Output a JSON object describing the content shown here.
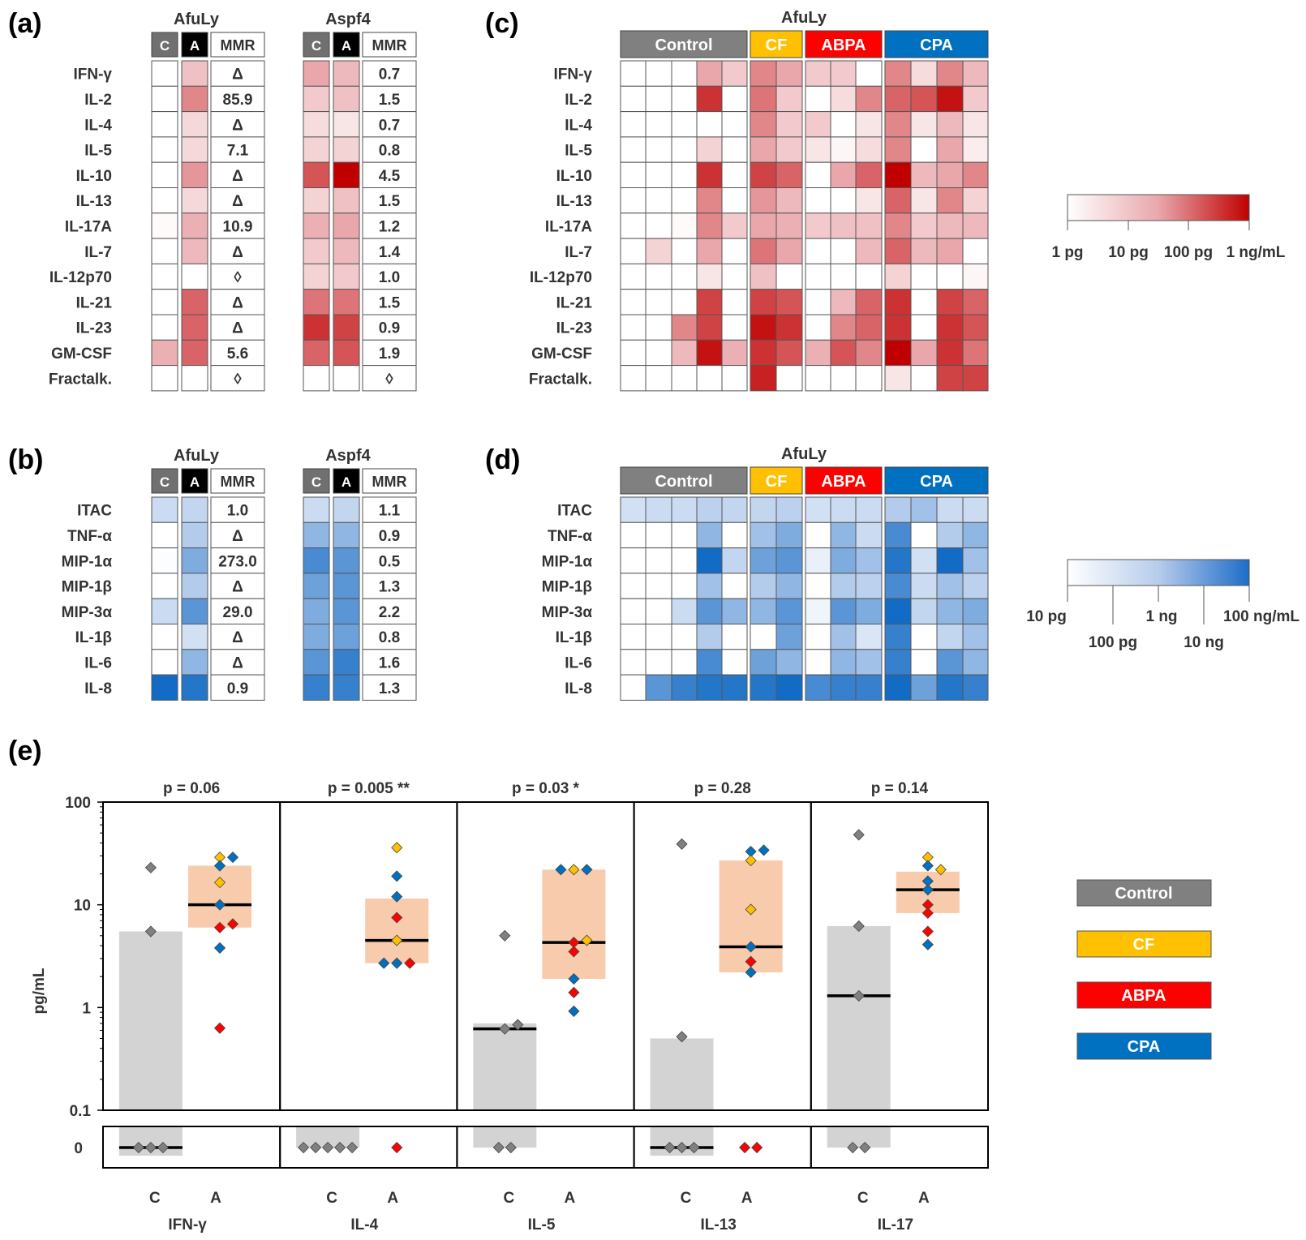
{
  "colors": {
    "control": "#808080",
    "cf": "#FFC000",
    "abpa": "#FF0000",
    "cpa": "#0070C0",
    "red_max": "#C00000",
    "blue_max": "#0060C0",
    "gray_box": "#D3D3D3",
    "orange_box": "#F8CBAD"
  },
  "panel_labels": {
    "a": "(a)",
    "b": "(b)",
    "c": "(c)",
    "d": "(d)",
    "e": "(e)"
  },
  "table_headers": {
    "c": "C",
    "a": "A",
    "mmr": "MMR",
    "afuly": "AfuLy",
    "aspf4": "Aspf4"
  },
  "group_headers": {
    "title": "AfuLy",
    "control": "Control",
    "cf": "CF",
    "abpa": "ABPA",
    "cpa": "CPA"
  },
  "panel_a": {
    "rows": [
      "IFN-γ",
      "IL-2",
      "IL-4",
      "IL-5",
      "IL-10",
      "IL-13",
      "IL-17A",
      "IL-7",
      "IL-12p70",
      "IL-21",
      "IL-23",
      "GM-CSF",
      "Fractalk."
    ],
    "afuly": {
      "c": [
        0,
        0,
        0,
        0,
        0,
        0,
        0.03,
        0,
        0,
        0,
        0,
        0.45,
        0
      ],
      "a": [
        0.35,
        0.6,
        0.22,
        0.22,
        0.55,
        0.22,
        0.45,
        0.4,
        0,
        0.7,
        0.7,
        0.7,
        0
      ],
      "mmr": [
        "Δ",
        "85.9",
        "Δ",
        "7.1",
        "Δ",
        "Δ",
        "10.9",
        "Δ",
        "◊",
        "Δ",
        "Δ",
        "5.6",
        "◊"
      ]
    },
    "aspf4": {
      "c": [
        0.5,
        0.3,
        0.2,
        0.25,
        0.75,
        0.25,
        0.45,
        0.3,
        0.25,
        0.65,
        0.85,
        0.7,
        0
      ],
      "a": [
        0.4,
        0.35,
        0.15,
        0.25,
        1.0,
        0.35,
        0.5,
        0.4,
        0.3,
        0.65,
        0.8,
        0.75,
        0
      ],
      "mmr": [
        "0.7",
        "1.5",
        "0.7",
        "0.8",
        "4.5",
        "1.5",
        "1.2",
        "1.4",
        "1.0",
        "1.5",
        "0.9",
        "1.9",
        "◊"
      ]
    }
  },
  "panel_b": {
    "rows": [
      "ITAC",
      "TNF-α",
      "MIP-1α",
      "MIP-1β",
      "MIP-3α",
      "IL-1β",
      "IL-6",
      "IL-8"
    ],
    "afuly": {
      "c": [
        0.35,
        0,
        0.02,
        0,
        0.35,
        0,
        0,
        0.95
      ],
      "a": [
        0.4,
        0.5,
        0.65,
        0.5,
        0.75,
        0.3,
        0.6,
        0.9
      ],
      "mmr": [
        "1.0",
        "Δ",
        "273.0",
        "Δ",
        "29.0",
        "Δ",
        "Δ",
        "0.9"
      ]
    },
    "aspf4": {
      "c": [
        0.35,
        0.6,
        0.8,
        0.7,
        0.65,
        0.65,
        0.75,
        0.85
      ],
      "a": [
        0.4,
        0.6,
        0.75,
        0.75,
        0.75,
        0.7,
        0.85,
        0.85
      ],
      "mmr": [
        "1.1",
        "0.9",
        "0.5",
        "1.3",
        "2.2",
        "0.8",
        "1.6",
        "1.3"
      ]
    }
  },
  "panel_c": {
    "rows": [
      "IFN-γ",
      "IL-2",
      "IL-4",
      "IL-5",
      "IL-10",
      "IL-13",
      "IL-17A",
      "IL-7",
      "IL-12p70",
      "IL-21",
      "IL-23",
      "GM-CSF",
      "Fractalk."
    ],
    "values": [
      [
        0,
        0,
        0,
        0.5,
        0.3,
        0.6,
        0.5,
        0.3,
        0.3,
        0,
        0.6,
        0.2,
        0.6,
        0.4
      ],
      [
        0,
        0,
        0,
        0.85,
        0,
        0.65,
        0.3,
        0,
        0.2,
        0.6,
        0.7,
        0.75,
        0.95,
        0.3
      ],
      [
        0,
        0,
        0,
        0,
        0,
        0.6,
        0.3,
        0.3,
        0,
        0.15,
        0.6,
        0.15,
        0.4,
        0.15
      ],
      [
        0,
        0,
        0,
        0.25,
        0,
        0.5,
        0.3,
        0.15,
        0.05,
        0.2,
        0.6,
        0,
        0.5,
        0.1
      ],
      [
        0,
        0,
        0,
        0.85,
        0,
        0.8,
        0.7,
        0,
        0.5,
        0.7,
        1.0,
        0.4,
        0.5,
        0.6
      ],
      [
        0,
        0,
        0,
        0.6,
        0,
        0.55,
        0.4,
        0,
        0,
        0.15,
        0.7,
        0.15,
        0.6,
        0.25
      ],
      [
        0,
        0,
        0.03,
        0.6,
        0.3,
        0.5,
        0.45,
        0.3,
        0.35,
        0.35,
        0.6,
        0.3,
        0.4,
        0.4
      ],
      [
        0,
        0.25,
        0,
        0.5,
        0,
        0.65,
        0.5,
        0,
        0,
        0.4,
        0.7,
        0.4,
        0.5,
        0
      ],
      [
        0,
        0,
        0,
        0.15,
        0,
        0.35,
        0,
        0,
        0,
        0,
        0.25,
        0,
        0,
        0.05
      ],
      [
        0,
        0,
        0,
        0.8,
        0,
        0.8,
        0.75,
        0,
        0.4,
        0.7,
        0.85,
        0,
        0.8,
        0.7
      ],
      [
        0,
        0,
        0.6,
        0.8,
        0,
        0.95,
        0.85,
        0,
        0.6,
        0.7,
        0.85,
        0,
        0.85,
        0.75
      ],
      [
        0,
        0,
        0.4,
        0.95,
        0.45,
        0.85,
        0.75,
        0.45,
        0.75,
        0.6,
        1.0,
        0.5,
        0.85,
        0.65
      ],
      [
        0,
        0,
        0,
        0,
        0,
        0.9,
        0,
        0,
        0,
        0,
        0.15,
        0,
        0.8,
        0.8
      ]
    ]
  },
  "panel_d": {
    "rows": [
      "ITAC",
      "TNF-α",
      "MIP-1α",
      "MIP-1β",
      "MIP-3α",
      "IL-1β",
      "IL-6",
      "IL-8"
    ],
    "values": [
      [
        0.3,
        0.35,
        0.35,
        0.45,
        0.4,
        0.4,
        0.45,
        0.3,
        0.35,
        0.35,
        0.5,
        0.55,
        0.35,
        0.35
      ],
      [
        0,
        0,
        0,
        0.6,
        0,
        0.55,
        0.65,
        0,
        0.6,
        0.35,
        0.8,
        0,
        0.5,
        0.6
      ],
      [
        0,
        0,
        0,
        0.95,
        0.4,
        0.7,
        0.75,
        0.15,
        0.65,
        0.55,
        0.9,
        0.3,
        0.95,
        0.55
      ],
      [
        0,
        0,
        0,
        0.55,
        0,
        0.5,
        0.6,
        0,
        0.5,
        0.45,
        0.8,
        0.35,
        0.55,
        0.45
      ],
      [
        0,
        0,
        0.35,
        0.75,
        0.6,
        0.6,
        0.75,
        0.1,
        0.75,
        0.65,
        0.95,
        0.4,
        0.6,
        0.65
      ],
      [
        0,
        0,
        0,
        0.5,
        0,
        0,
        0.7,
        0,
        0.55,
        0.25,
        0.85,
        0,
        0.4,
        0.55
      ],
      [
        0,
        0,
        0,
        0.8,
        0,
        0.7,
        0.6,
        0,
        0.6,
        0.55,
        0.85,
        0,
        0.75,
        0.6
      ],
      [
        0,
        0.75,
        0.85,
        0.9,
        0.9,
        0.9,
        0.95,
        0.8,
        0.85,
        0.85,
        0.95,
        0.7,
        0.9,
        0.85
      ]
    ]
  },
  "legend_red": {
    "ticks": [
      "1 pg",
      "10 pg",
      "100 pg",
      "1 ng/mL"
    ]
  },
  "legend_blue": {
    "ticks_top": [
      "10 pg",
      "1 ng",
      "100 ng/mL"
    ],
    "ticks_bottom": [
      "100 pg",
      "10 ng"
    ]
  },
  "legend_groups": [
    "Control",
    "CF",
    "ABPA",
    "CPA"
  ],
  "chart_data": {
    "type": "scatter",
    "title": "",
    "ylabel": "pg/mL",
    "yscale": "log",
    "ylim": [
      0.1,
      100
    ],
    "y_ticks": [
      "100",
      "10",
      "1",
      "0.1"
    ],
    "zero_label": "0",
    "x_group_labels": [
      "C",
      "A"
    ],
    "panels": [
      {
        "name": "IFN-γ",
        "p": "p = 0.06",
        "C": {
          "box": [
            0.1,
            5.5
          ],
          "median": null,
          "zero_box": true,
          "zero_median": true,
          "points": [
            {
              "v": 23,
              "g": "control"
            },
            {
              "v": 5.5,
              "g": "control"
            }
          ],
          "zeros": [
            {
              "g": "control"
            },
            {
              "g": "control"
            },
            {
              "g": "control"
            }
          ]
        },
        "A": {
          "box": [
            6,
            24
          ],
          "median": 10,
          "points": [
            {
              "v": 29,
              "g": "cf"
            },
            {
              "v": 29,
              "g": "cpa"
            },
            {
              "v": 24,
              "g": "cpa"
            },
            {
              "v": 16.5,
              "g": "cf"
            },
            {
              "v": 10,
              "g": "cpa"
            },
            {
              "v": 6,
              "g": "abpa"
            },
            {
              "v": 6.5,
              "g": "abpa"
            },
            {
              "v": 3.8,
              "g": "cpa"
            },
            {
              "v": 0.63,
              "g": "abpa"
            }
          ],
          "zeros": []
        }
      },
      {
        "name": "IL-4",
        "p": "p = 0.005 **",
        "C": {
          "box": null,
          "median": null,
          "zero_box": true,
          "zero_median": false,
          "points": [],
          "zeros": [
            {
              "g": "control"
            },
            {
              "g": "control"
            },
            {
              "g": "control"
            },
            {
              "g": "control"
            },
            {
              "g": "control"
            }
          ]
        },
        "A": {
          "box": [
            2.7,
            11.5
          ],
          "median": 4.5,
          "points": [
            {
              "v": 36,
              "g": "cf"
            },
            {
              "v": 19,
              "g": "cpa"
            },
            {
              "v": 12,
              "g": "cpa"
            },
            {
              "v": 7.5,
              "g": "abpa"
            },
            {
              "v": 4.5,
              "g": "cf"
            },
            {
              "v": 2.7,
              "g": "cpa"
            },
            {
              "v": 2.7,
              "g": "abpa"
            },
            {
              "v": 2.7,
              "g": "cpa"
            }
          ],
          "zeros": [
            {
              "g": "abpa"
            }
          ]
        }
      },
      {
        "name": "IL-5",
        "p": "p = 0.03 *",
        "C": {
          "box": [
            0.1,
            0.7
          ],
          "median": 0.62,
          "zero_box": true,
          "zero_median": false,
          "points": [
            {
              "v": 5,
              "g": "control"
            },
            {
              "v": 0.62,
              "g": "control"
            },
            {
              "v": 0.68,
              "g": "control"
            }
          ],
          "zeros": [
            {
              "g": "control"
            },
            {
              "g": "control"
            }
          ]
        },
        "A": {
          "box": [
            1.9,
            22
          ],
          "median": 4.3,
          "points": [
            {
              "v": 22,
              "g": "cf"
            },
            {
              "v": 22,
              "g": "cpa"
            },
            {
              "v": 22,
              "g": "cpa"
            },
            {
              "v": 4.3,
              "g": "abpa"
            },
            {
              "v": 4.5,
              "g": "cf"
            },
            {
              "v": 3.5,
              "g": "abpa"
            },
            {
              "v": 1.9,
              "g": "cpa"
            },
            {
              "v": 1.4,
              "g": "abpa"
            },
            {
              "v": 0.92,
              "g": "cpa"
            }
          ],
          "zeros": []
        }
      },
      {
        "name": "IL-13",
        "p": "p = 0.28",
        "C": {
          "box": [
            0.1,
            0.5
          ],
          "median": null,
          "zero_box": true,
          "zero_median": true,
          "points": [
            {
              "v": 39,
              "g": "control"
            },
            {
              "v": 0.52,
              "g": "control"
            }
          ],
          "zeros": [
            {
              "g": "control"
            },
            {
              "g": "control"
            },
            {
              "g": "control"
            }
          ]
        },
        "A": {
          "box": [
            2.2,
            27
          ],
          "median": 3.9,
          "points": [
            {
              "v": 33,
              "g": "cpa"
            },
            {
              "v": 34,
              "g": "cpa"
            },
            {
              "v": 27,
              "g": "cf"
            },
            {
              "v": 9,
              "g": "cf"
            },
            {
              "v": 3.9,
              "g": "cpa"
            },
            {
              "v": 2.8,
              "g": "abpa"
            },
            {
              "v": 2.2,
              "g": "cpa"
            }
          ],
          "zeros": [
            {
              "g": "abpa"
            },
            {
              "g": "abpa"
            }
          ]
        }
      },
      {
        "name": "IL-17",
        "p": "p = 0.14",
        "C": {
          "box": [
            0.1,
            6.2
          ],
          "median": 1.3,
          "zero_box": true,
          "zero_median": false,
          "points": [
            {
              "v": 48,
              "g": "control"
            },
            {
              "v": 6.2,
              "g": "control"
            },
            {
              "v": 1.3,
              "g": "control"
            }
          ],
          "zeros": [
            {
              "g": "control"
            },
            {
              "g": "control"
            }
          ]
        },
        "A": {
          "box": [
            8.3,
            21
          ],
          "median": 14,
          "points": [
            {
              "v": 29,
              "g": "cf"
            },
            {
              "v": 24,
              "g": "cpa"
            },
            {
              "v": 22,
              "g": "cf"
            },
            {
              "v": 17,
              "g": "cpa"
            },
            {
              "v": 14,
              "g": "cpa"
            },
            {
              "v": 10,
              "g": "abpa"
            },
            {
              "v": 8.3,
              "g": "abpa"
            },
            {
              "v": 5.5,
              "g": "abpa"
            },
            {
              "v": 4.1,
              "g": "cpa"
            }
          ],
          "zeros": []
        }
      }
    ]
  }
}
